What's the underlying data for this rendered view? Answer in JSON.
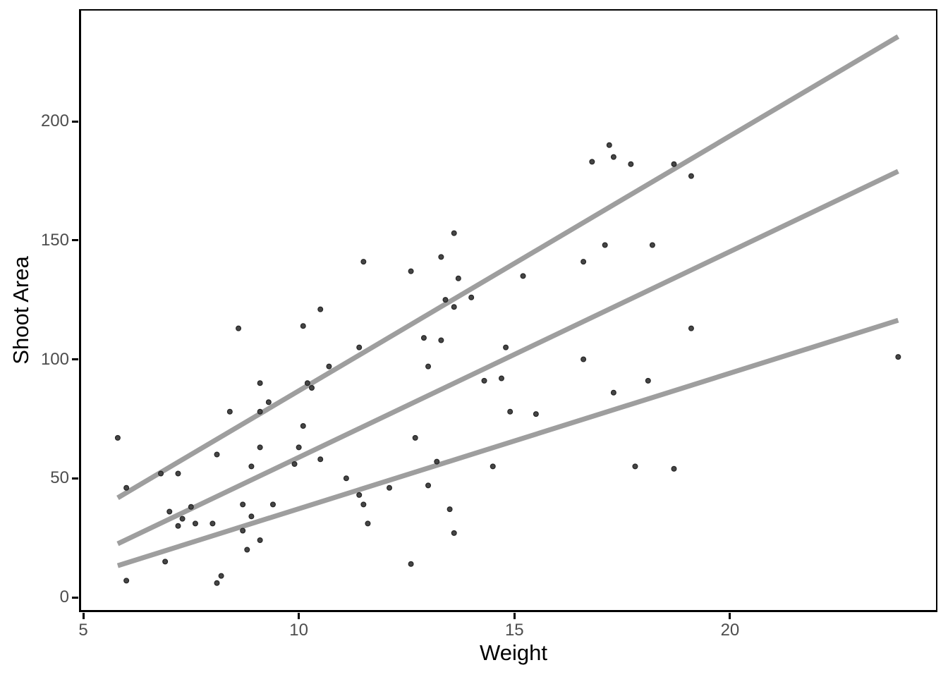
{
  "figure": {
    "background": "#ffffff",
    "axis_line_color": "#000000",
    "tick_label_color": "#4d4d4d",
    "axis_title_color": "#000000"
  },
  "chart_data": {
    "type": "scatter",
    "title": "",
    "xlabel": "Weight",
    "ylabel": "Shoot Area",
    "xlim": [
      4.9,
      24.9
    ],
    "ylim": [
      -6,
      247
    ],
    "x_ticks": [
      5,
      10,
      15,
      20
    ],
    "y_ticks": [
      0,
      50,
      100,
      150,
      200
    ],
    "grid": false,
    "legend": null,
    "point_color": "#454545",
    "point_edge_color": "#262626",
    "line_color": "#9e9e9e",
    "points": [
      [
        17.2,
        190
      ],
      [
        17.3,
        185
      ],
      [
        16.8,
        183
      ],
      [
        17.7,
        182
      ],
      [
        18.7,
        182
      ],
      [
        19.1,
        177
      ],
      [
        13.6,
        153
      ],
      [
        17.1,
        148
      ],
      [
        18.2,
        148
      ],
      [
        13.3,
        143
      ],
      [
        11.5,
        141
      ],
      [
        16.6,
        141
      ],
      [
        12.6,
        137
      ],
      [
        15.2,
        135
      ],
      [
        13.7,
        134
      ],
      [
        14.0,
        126
      ],
      [
        13.4,
        125
      ],
      [
        13.6,
        122
      ],
      [
        10.5,
        121
      ],
      [
        10.1,
        114
      ],
      [
        8.6,
        113
      ],
      [
        19.1,
        113
      ],
      [
        12.9,
        109
      ],
      [
        13.3,
        108
      ],
      [
        11.4,
        105
      ],
      [
        14.8,
        105
      ],
      [
        23.9,
        101
      ],
      [
        16.6,
        100
      ],
      [
        10.7,
        97
      ],
      [
        13.0,
        97
      ],
      [
        14.7,
        92
      ],
      [
        14.3,
        91
      ],
      [
        18.1,
        91
      ],
      [
        9.1,
        90
      ],
      [
        10.2,
        90
      ],
      [
        10.3,
        88
      ],
      [
        17.3,
        86
      ],
      [
        9.3,
        82
      ],
      [
        9.1,
        78
      ],
      [
        8.4,
        78
      ],
      [
        14.9,
        78
      ],
      [
        15.5,
        77
      ],
      [
        10.1,
        72
      ],
      [
        5.8,
        67
      ],
      [
        12.7,
        67
      ],
      [
        9.1,
        63
      ],
      [
        10.0,
        63
      ],
      [
        8.1,
        60
      ],
      [
        10.5,
        58
      ],
      [
        13.2,
        57
      ],
      [
        9.9,
        56
      ],
      [
        8.9,
        55
      ],
      [
        14.5,
        55
      ],
      [
        17.8,
        55
      ],
      [
        18.7,
        54
      ],
      [
        6.8,
        52
      ],
      [
        7.2,
        52
      ],
      [
        11.1,
        50
      ],
      [
        13.0,
        47
      ],
      [
        6.0,
        46
      ],
      [
        12.1,
        46
      ],
      [
        11.4,
        43
      ],
      [
        8.7,
        39
      ],
      [
        9.4,
        39
      ],
      [
        11.5,
        39
      ],
      [
        7.5,
        38
      ],
      [
        13.5,
        37
      ],
      [
        7.0,
        36
      ],
      [
        8.9,
        34
      ],
      [
        7.3,
        33
      ],
      [
        7.6,
        31
      ],
      [
        8.0,
        31
      ],
      [
        11.6,
        31
      ],
      [
        7.2,
        30
      ],
      [
        8.7,
        28
      ],
      [
        13.6,
        27
      ],
      [
        9.1,
        24
      ],
      [
        8.8,
        20
      ],
      [
        6.9,
        15
      ],
      [
        12.6,
        14
      ],
      [
        8.2,
        9
      ],
      [
        6.0,
        7
      ],
      [
        8.1,
        6
      ]
    ],
    "lines": [
      {
        "name": "upper-quantile-line",
        "x1": 5.8,
        "y1": 41.8,
        "x2": 23.9,
        "y2": 235.6
      },
      {
        "name": "middle-quantile-line",
        "x1": 5.8,
        "y1": 22.5,
        "x2": 23.9,
        "y2": 179.0
      },
      {
        "name": "lower-quantile-line",
        "x1": 5.8,
        "y1": 13.3,
        "x2": 23.9,
        "y2": 116.4
      }
    ]
  }
}
